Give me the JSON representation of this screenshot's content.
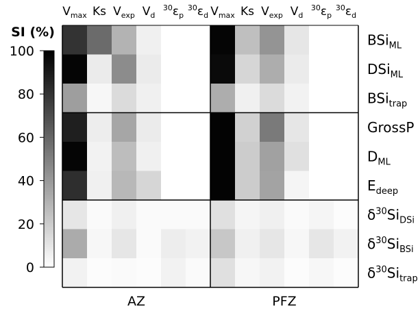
{
  "chart_data": {
    "type": "heatmap",
    "colorbar": {
      "title": "SI (%)",
      "ticks": [
        0,
        20,
        40,
        60,
        80,
        100
      ],
      "range": [
        0,
        100
      ],
      "colormap": "white-to-black"
    },
    "column_groups": [
      "AZ",
      "PFZ"
    ],
    "columns": [
      {
        "base": "V",
        "sub": "max",
        "sup": ""
      },
      {
        "base": "Ks",
        "sub": "",
        "sup": ""
      },
      {
        "base": "V",
        "sub": "exp",
        "sup": ""
      },
      {
        "base": "V",
        "sub": "d",
        "sup": ""
      },
      {
        "base": "ε",
        "sub": "p",
        "sup": "30"
      },
      {
        "base": "ε",
        "sub": "d",
        "sup": "30"
      }
    ],
    "rows": [
      {
        "pre": "",
        "base": "BSi",
        "sub": "ML"
      },
      {
        "pre": "",
        "base": "DSi",
        "sub": "ML"
      },
      {
        "pre": "",
        "base": "BSi",
        "sub": "trap"
      },
      {
        "pre": "",
        "base": "GrossP",
        "sub": ""
      },
      {
        "pre": "",
        "base": "D",
        "sub": "ML"
      },
      {
        "pre": "",
        "base": "E",
        "sub": "deep"
      },
      {
        "pre": "δ30",
        "base": "Si",
        "sub": "DSi"
      },
      {
        "pre": "δ30",
        "base": "Si",
        "sub": "BSi"
      },
      {
        "pre": "δ30",
        "base": "Si",
        "sub": "trap"
      }
    ],
    "values": {
      "AZ": [
        [
          80,
          58,
          30,
          6,
          0,
          0
        ],
        [
          98,
          8,
          45,
          8,
          0,
          0
        ],
        [
          38,
          3,
          14,
          6,
          0,
          0
        ],
        [
          88,
          7,
          35,
          8,
          0,
          0
        ],
        [
          98,
          5,
          26,
          6,
          0,
          0
        ],
        [
          82,
          6,
          28,
          16,
          0,
          0
        ],
        [
          10,
          2,
          6,
          2,
          2,
          2
        ],
        [
          33,
          3,
          10,
          2,
          7,
          5
        ],
        [
          5,
          1,
          2,
          1,
          5,
          2
        ]
      ],
      "PFZ": [
        [
          98,
          25,
          42,
          10,
          0,
          0
        ],
        [
          96,
          16,
          32,
          8,
          0,
          0
        ],
        [
          32,
          6,
          14,
          5,
          0,
          0
        ],
        [
          99,
          18,
          52,
          10,
          0,
          0
        ],
        [
          99,
          20,
          37,
          12,
          0,
          0
        ],
        [
          99,
          20,
          36,
          4,
          0,
          0
        ],
        [
          12,
          4,
          6,
          2,
          4,
          1
        ],
        [
          22,
          6,
          10,
          3,
          10,
          5
        ],
        [
          12,
          3,
          5,
          1,
          3,
          1
        ]
      ]
    },
    "grid": false
  }
}
